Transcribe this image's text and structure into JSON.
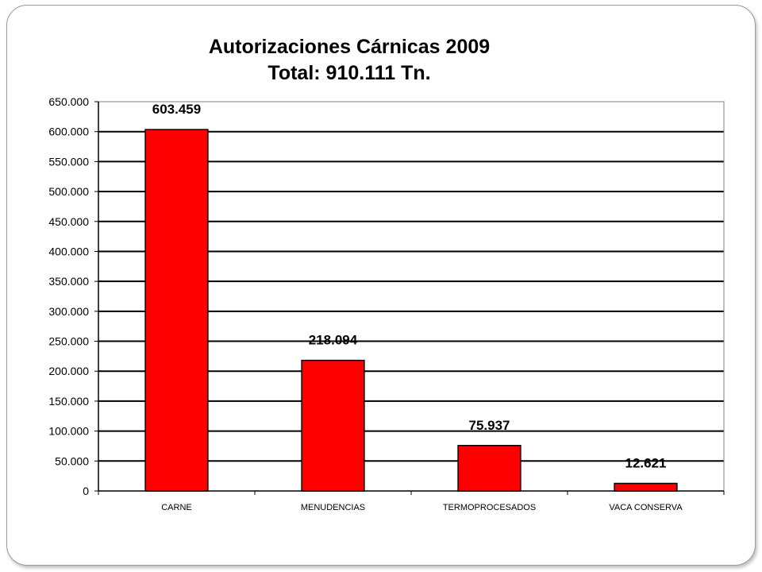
{
  "slide": {
    "title_line1": "Autorizaciones Cárnicas 2009",
    "title_line2": "Total: 910.111 Tn."
  },
  "chart_data": {
    "type": "bar",
    "title": "Autorizaciones Cárnicas 2009",
    "subtitle": "Total: 910.111 Tn.",
    "xlabel": "",
    "ylabel": "",
    "categories": [
      "CARNE",
      "MENUDENCIAS",
      "TERMOPROCESADOS",
      "VACA CONSERVA"
    ],
    "values": [
      603459,
      218094,
      75937,
      12621
    ],
    "value_labels": [
      "603.459",
      "218.094",
      "75.937",
      "12.621"
    ],
    "ylim": [
      0,
      650000
    ],
    "yticks": [
      0,
      50000,
      100000,
      150000,
      200000,
      250000,
      300000,
      350000,
      400000,
      450000,
      500000,
      550000,
      600000,
      650000
    ],
    "ytick_labels": [
      "0",
      "50.000",
      "100.000",
      "150.000",
      "200.000",
      "250.000",
      "300.000",
      "350.000",
      "400.000",
      "450.000",
      "500.000",
      "550.000",
      "600.000",
      "650.000"
    ],
    "grid": true,
    "legend": "none",
    "colors": {
      "bar": "#ff0000",
      "bar_border": "#000000",
      "grid": "#000000"
    }
  }
}
